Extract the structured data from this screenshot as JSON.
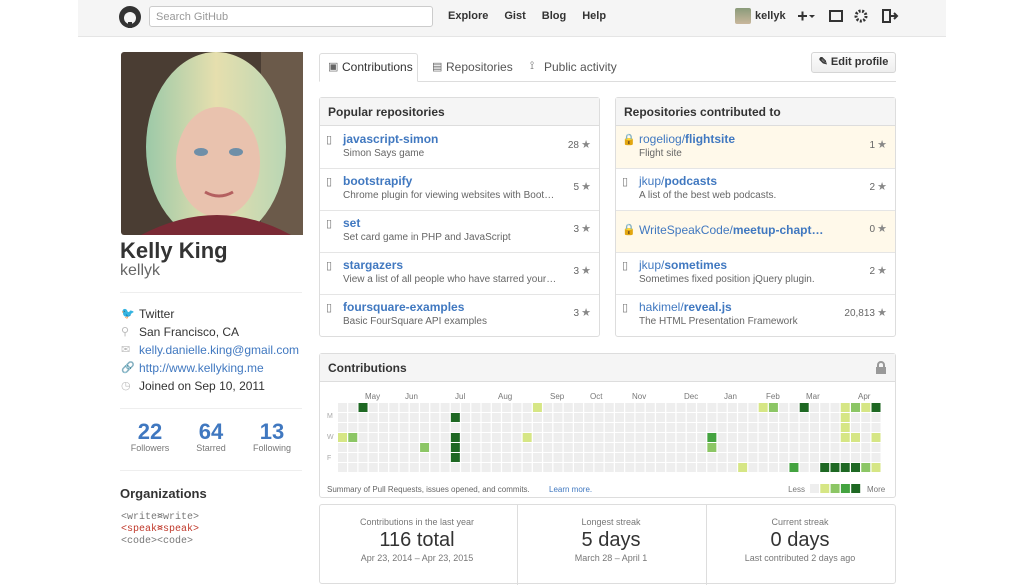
{
  "header": {
    "search_placeholder": "Search GitHub",
    "nav": [
      "Explore",
      "Gist",
      "Blog",
      "Help"
    ],
    "username": "kellyk"
  },
  "profile": {
    "name": "Kelly King",
    "username": "kellyk",
    "details": [
      "Twitter",
      "San Francisco, CA",
      "kelly.danielle.king@gmail.com",
      "http://www.kellyking.me",
      "Joined on Sep 10, 2011"
    ],
    "stats": [
      {
        "value": "22",
        "label": "Followers"
      },
      {
        "value": "64",
        "label": "Starred"
      },
      {
        "value": "13",
        "label": "Following"
      }
    ],
    "organizations_title": "Organizations",
    "org_logo": [
      [
        "<write>",
        "<write>"
      ],
      [
        "<speak>",
        "<speak>"
      ],
      [
        "<code>",
        "<code>"
      ]
    ]
  },
  "tabs": [
    "Contributions",
    "Repositories",
    "Public activity"
  ],
  "edit_profile": "Edit profile",
  "popular": {
    "title": "Popular repositories",
    "repos": [
      {
        "name": "javascript-simon",
        "description": "Simon Says game",
        "stars": "28"
      },
      {
        "name": "bootstrapify",
        "description": "Chrome plugin for viewing websites with Boot…",
        "stars": "5"
      },
      {
        "name": "set",
        "description": "Set card game in PHP and JavaScript",
        "stars": "3"
      },
      {
        "name": "stargazers",
        "description": "View a list of all people who have starred your…",
        "stars": "3"
      },
      {
        "name": "foursquare-examples",
        "description": "Basic FourSquare API examples",
        "stars": "3"
      }
    ]
  },
  "contributed": {
    "title": "Repositories contributed to",
    "repos": [
      {
        "owner": "rogeliog/",
        "name": "flightsite",
        "description": "Flight site",
        "stars": "1",
        "private": true
      },
      {
        "owner": "jkup/",
        "name": "podcasts",
        "description": "A list of the best web podcasts.",
        "stars": "2",
        "private": false
      },
      {
        "owner": "WriteSpeakCode/",
        "name": "meetup-chapt…",
        "description": null,
        "stars": "0",
        "private": true
      },
      {
        "owner": "jkup/",
        "name": "sometimes",
        "description": "Sometimes fixed position jQuery plugin.",
        "stars": "2",
        "private": false
      },
      {
        "owner": "hakimel/",
        "name": "reveal.js",
        "description": "The HTML Presentation Framework",
        "stars": "20,813",
        "private": false
      }
    ]
  },
  "contributions": {
    "title": "Contributions",
    "months": [
      "May",
      "Jun",
      "Jul",
      "Aug",
      "Sep",
      "Oct",
      "Nov",
      "Dec",
      "Jan",
      "Feb",
      "Mar",
      "Apr"
    ],
    "days": [
      "M",
      "W",
      "F"
    ],
    "summary": "Summary of Pull Requests, issues opened, and commits.",
    "learn_more": "Learn more.",
    "less": "Less",
    "more": "More",
    "colors": [
      "#eeeeee",
      "#d6e685",
      "#8cc665",
      "#44a340",
      "#1e6823"
    ],
    "weeks": [
      [
        0,
        0,
        0,
        1,
        0,
        0,
        0
      ],
      [
        0,
        0,
        0,
        2,
        0,
        0,
        0
      ],
      [
        4,
        0,
        0,
        0,
        0,
        0,
        0
      ],
      [
        0,
        0,
        0,
        0,
        0,
        0,
        0
      ],
      [
        0,
        0,
        0,
        0,
        0,
        0,
        0
      ],
      [
        0,
        0,
        0,
        0,
        0,
        0,
        0
      ],
      [
        0,
        0,
        0,
        0,
        0,
        0,
        0
      ],
      [
        0,
        0,
        0,
        0,
        0,
        0,
        0
      ],
      [
        0,
        0,
        0,
        0,
        2,
        0,
        0
      ],
      [
        0,
        0,
        0,
        0,
        0,
        0,
        0
      ],
      [
        0,
        0,
        0,
        0,
        0,
        0,
        0
      ],
      [
        0,
        4,
        0,
        4,
        4,
        4,
        0
      ],
      [
        0,
        0,
        0,
        0,
        0,
        0,
        0
      ],
      [
        0,
        0,
        0,
        0,
        0,
        0,
        0
      ],
      [
        0,
        0,
        0,
        0,
        0,
        0,
        0
      ],
      [
        0,
        0,
        0,
        0,
        0,
        0,
        0
      ],
      [
        0,
        0,
        0,
        0,
        0,
        0,
        0
      ],
      [
        0,
        0,
        0,
        0,
        0,
        0,
        0
      ],
      [
        0,
        0,
        0,
        1,
        0,
        0,
        0
      ],
      [
        1,
        0,
        0,
        0,
        0,
        0,
        0
      ],
      [
        0,
        0,
        0,
        0,
        0,
        0,
        0
      ],
      [
        0,
        0,
        0,
        0,
        0,
        0,
        0
      ],
      [
        0,
        0,
        0,
        0,
        0,
        0,
        0
      ],
      [
        0,
        0,
        0,
        0,
        0,
        0,
        0
      ],
      [
        0,
        0,
        0,
        0,
        0,
        0,
        0
      ],
      [
        0,
        0,
        0,
        0,
        0,
        0,
        0
      ],
      [
        0,
        0,
        0,
        0,
        0,
        0,
        0
      ],
      [
        0,
        0,
        0,
        0,
        0,
        0,
        0
      ],
      [
        0,
        0,
        0,
        0,
        0,
        0,
        0
      ],
      [
        0,
        0,
        0,
        0,
        0,
        0,
        0
      ],
      [
        0,
        0,
        0,
        0,
        0,
        0,
        0
      ],
      [
        0,
        0,
        0,
        0,
        0,
        0,
        0
      ],
      [
        0,
        0,
        0,
        0,
        0,
        0,
        0
      ],
      [
        0,
        0,
        0,
        0,
        0,
        0,
        0
      ],
      [
        0,
        0,
        0,
        0,
        0,
        0,
        0
      ],
      [
        0,
        0,
        0,
        0,
        0,
        0,
        0
      ],
      [
        0,
        0,
        0,
        3,
        2,
        0,
        0
      ],
      [
        0,
        0,
        0,
        0,
        0,
        0,
        0
      ],
      [
        0,
        0,
        0,
        0,
        0,
        0,
        0
      ],
      [
        0,
        0,
        0,
        0,
        0,
        0,
        1
      ],
      [
        0,
        0,
        0,
        0,
        0,
        0,
        0
      ],
      [
        1,
        0,
        0,
        0,
        0,
        0,
        0
      ],
      [
        2,
        0,
        0,
        0,
        0,
        0,
        0
      ],
      [
        0,
        0,
        0,
        0,
        0,
        0,
        0
      ],
      [
        0,
        0,
        0,
        0,
        0,
        0,
        3
      ],
      [
        4,
        0,
        0,
        0,
        0,
        0,
        0
      ],
      [
        0,
        0,
        0,
        0,
        0,
        0,
        0
      ],
      [
        0,
        0,
        0,
        0,
        0,
        0,
        4
      ],
      [
        0,
        0,
        0,
        0,
        0,
        0,
        4
      ],
      [
        1,
        1,
        1,
        1,
        0,
        0,
        4
      ],
      [
        2,
        0,
        0,
        1,
        0,
        0,
        4
      ],
      [
        1,
        0,
        0,
        0,
        0,
        0,
        2
      ],
      [
        4,
        0,
        0,
        1,
        0,
        0,
        1
      ]
    ]
  },
  "streaks": [
    {
      "label": "Contributions in the last year",
      "value": "116 total",
      "range": "Apr 23, 2014 – Apr 23, 2015"
    },
    {
      "label": "Longest streak",
      "value": "5 days",
      "range": "March 28 – April 1"
    },
    {
      "label": "Current streak",
      "value": "0 days",
      "range": "Last contributed 2 days ago"
    }
  ]
}
